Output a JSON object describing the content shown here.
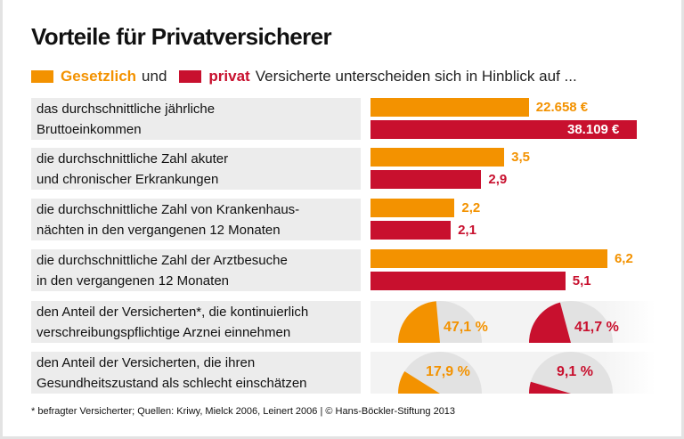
{
  "title": "Vorteile für Privatversicherer",
  "legend": {
    "gesetzlich": "Gesetzlich",
    "und": "und",
    "privat": "privat",
    "rest": "Versicherte unterscheiden sich in Hinblick auf ..."
  },
  "colors": {
    "gesetzlich": "#f39200",
    "privat": "#c8102e",
    "pie_rest": "#e2e2e2",
    "panel": "#ececec"
  },
  "chart_data": {
    "type": "bar",
    "series": [
      {
        "name": "Gesetzlich"
      },
      {
        "name": "privat"
      }
    ],
    "rows": [
      {
        "label": [
          "das durchschnittliche jährliche",
          "Bruttoeinkommen"
        ],
        "kind": "bar",
        "values": [
          22658,
          38109
        ],
        "value_labels": [
          "22.658 €",
          "38.109 €"
        ]
      },
      {
        "label": [
          "die durchschnittliche Zahl akuter",
          "und chronischer Erkrankungen"
        ],
        "kind": "bar",
        "values": [
          3.5,
          2.9
        ],
        "value_labels": [
          "3,5",
          "2,9"
        ]
      },
      {
        "label": [
          "die durchschnittliche Zahl von Krankenhaus-",
          "nächten in den vergangenen 12 Monaten"
        ],
        "kind": "bar",
        "values": [
          2.2,
          2.1
        ],
        "value_labels": [
          "2,2",
          "2,1"
        ]
      },
      {
        "label": [
          "die durchschnittliche Zahl der Arztbesuche",
          "in den vergangenen 12 Monaten"
        ],
        "kind": "bar",
        "values": [
          6.2,
          5.1
        ],
        "value_labels": [
          "6,2",
          "5,1"
        ]
      },
      {
        "label": [
          "den Anteil der Versicherten*, die kontinuierlich",
          "verschreibungspflichtige Arznei einnehmen"
        ],
        "kind": "half-pie",
        "values": [
          47.1,
          41.7
        ],
        "value_labels": [
          "47,1 %",
          "41,7 %"
        ]
      },
      {
        "label": [
          "den Anteil der Versicherten, die ihren",
          "Gesundheitszustand als schlecht einschätzen"
        ],
        "kind": "half-pie",
        "values": [
          17.9,
          9.1
        ],
        "value_labels": [
          "17,9 %",
          "9,1 %"
        ]
      }
    ]
  },
  "footer": "* befragter Versicherter; Quellen: Kriwy, Mielck 2006, Leinert 2006 | © Hans-Böckler-Stiftung 2013"
}
